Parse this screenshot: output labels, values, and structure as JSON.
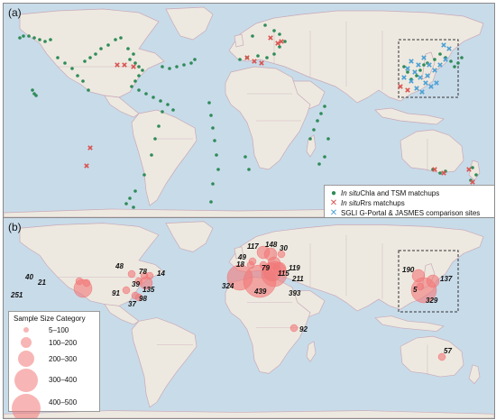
{
  "panel_a": {
    "label": "(a)",
    "legend": [
      {
        "symbol": "dot",
        "color": "#2e8b57",
        "italic": "In situ",
        "text": " Chla and TSM matchups"
      },
      {
        "symbol": "cross",
        "color": "#d9534f",
        "italic": "In situ",
        "text": " Rrs matchups"
      },
      {
        "symbol": "cross",
        "color": "#4a9fd4",
        "italic": "",
        "text": "SGLI G-Portal & JASMES comparison sites"
      }
    ]
  },
  "panel_b": {
    "label": "(b)",
    "legend_title": "Sample Size Category",
    "legend_items": [
      "5–100",
      "100–200",
      "200–300",
      "300–400",
      "400–500"
    ],
    "counts": [
      "40",
      "21",
      "251",
      "48",
      "78",
      "14",
      "39",
      "135",
      "91",
      "37",
      "98",
      "117",
      "148",
      "30",
      "18",
      "49",
      "79",
      "115",
      "119",
      "211",
      "393",
      "324",
      "439",
      "190",
      "137",
      "5",
      "329",
      "92",
      "57"
    ]
  },
  "colors": {
    "ocean": "#c8dbe9",
    "land": "#ede9e0",
    "border": "#c9a9b8",
    "bubble": "#f27878",
    "green": "#2e8b57",
    "red": "#d9534f",
    "blue": "#4a9fd4"
  }
}
